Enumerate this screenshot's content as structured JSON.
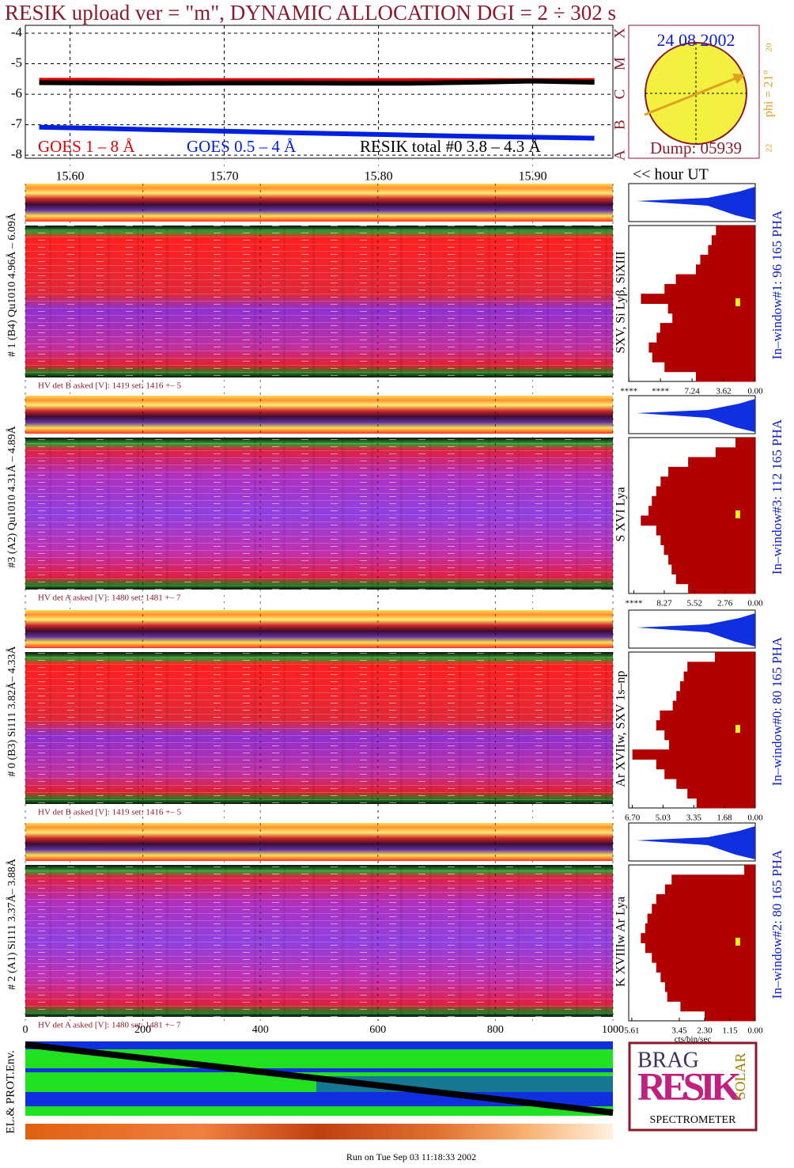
{
  "title": "RESIK upload ver = \"m\", DYNAMIC ALLOCATION  DGI =   2 ÷ 302 s",
  "chart_data": [
    {
      "type": "line",
      "xlabel": "<< hour UT",
      "x": [
        15.58,
        15.62,
        15.66,
        15.7,
        15.74,
        15.78,
        15.82,
        15.86,
        15.9,
        15.94
      ],
      "xlim": [
        15.571,
        15.952
      ],
      "xticks": [
        {
          "value": 15.6,
          "label": "15.60"
        },
        {
          "value": 15.7,
          "label": "15.70"
        },
        {
          "value": 15.8,
          "label": "15.80"
        },
        {
          "value": 15.9,
          "label": "15.90"
        }
      ],
      "ylim": [
        -8.1,
        -3.74
      ],
      "yticks": [
        -4,
        -5,
        -6,
        -7,
        -8
      ],
      "grid": true,
      "series": [
        {
          "name": "GOES 1 – 8 Å",
          "color": "#e00000",
          "values": [
            -5.54,
            -5.54,
            -5.55,
            -5.55,
            -5.55,
            -5.55,
            -5.55,
            -5.55,
            -5.55,
            -5.55
          ]
        },
        {
          "name": "GOES 0.5 – 4 Å",
          "color": "#0020e0",
          "values": [
            -7.08,
            -7.12,
            -7.17,
            -7.21,
            -7.26,
            -7.3,
            -7.34,
            -7.38,
            -7.41,
            -7.44
          ]
        },
        {
          "name": "RESIK total #0  3.8 – 4.3 Å",
          "color": "#000000",
          "values": [
            -5.62,
            -5.63,
            -5.64,
            -5.63,
            -5.63,
            -5.64,
            -5.64,
            -5.61,
            -5.57,
            -5.61
          ]
        }
      ]
    },
    {
      "type": "profile",
      "xlim": [
        14.5,
        0
      ],
      "xticks": [
        {
          "value": 14.48,
          "label": "****"
        },
        {
          "value": 10.86,
          "label": "****"
        },
        7.24,
        3.62,
        {
          "value": 0,
          "label": "0.00"
        }
      ],
      "values": [
        4.5,
        5.0,
        5.4,
        6.3,
        6.8,
        9.1,
        10.4,
        13.1,
        10.0,
        9.5,
        10.9,
        11.3,
        12.2,
        11.8,
        10.4,
        6.8
      ]
    },
    {
      "type": "profile",
      "xlim": [
        11.5,
        0
      ],
      "xticks": [
        {
          "value": 11.03,
          "label": "****"
        },
        8.27,
        5.52,
        2.76,
        {
          "value": 0,
          "label": "0.00"
        }
      ],
      "values": [
        1.8,
        3.6,
        6.1,
        7.9,
        8.6,
        9.0,
        9.4,
        9.7,
        10.4,
        9.0,
        8.6,
        8.3,
        7.9,
        7.6,
        7.2,
        6.1
      ]
    },
    {
      "type": "profile",
      "xlim": [
        6.9,
        0
      ],
      "xticks": [
        {
          "value": 6.7,
          "label": "6.70"
        },
        5.03,
        3.35,
        1.68,
        {
          "value": 0,
          "label": "0.00"
        }
      ],
      "values": [
        2.2,
        3.7,
        3.9,
        4.1,
        4.3,
        4.5,
        5.2,
        5.4,
        4.95,
        4.7,
        6.7,
        5.4,
        4.95,
        4.3,
        3.7,
        3.2
      ]
    },
    {
      "type": "profile",
      "xlim": [
        5.75,
        0
      ],
      "xlabel": "cts/bin/sec",
      "xticks": [
        5.61,
        3.45,
        {
          "value": 2.3,
          "label": "2.30"
        },
        1.15,
        {
          "value": 0,
          "label": "0.00"
        }
      ],
      "values": [
        0.5,
        3.8,
        4.1,
        4.5,
        4.7,
        4.9,
        5.0,
        5.2,
        5.0,
        4.7,
        4.5,
        4.3,
        4.1,
        4.0,
        3.4,
        2.3
      ]
    }
  ],
  "flare_classes": [
    "A",
    "B",
    "C",
    "M",
    "X"
  ],
  "sun": {
    "date": "24 08 2002",
    "dump": "Dump: 05939",
    "phi": "phi = 21°",
    "top_tick": "20",
    "bottom_tick": "22"
  },
  "panels": [
    {
      "label": "# 1 (B4) Qu1010 4.96Å – 6.09Å",
      "lines": "SXV, Si Lyβ, SiXIII",
      "window": "In–window#1:   96 165 PHA",
      "hv": "HV det B asked [V]:  1419 set:  1416 +–    5"
    },
    {
      "label": "#3 (A2) Qu1010  4.31Å – 4.89Å",
      "lines": "S XVI Lya",
      "window": "In–window#3:  112 165 PHA",
      "hv": "HV det A asked [V]:  1480 set:  1481 +–    7"
    },
    {
      "label": "# 0 (B3) Si111  3.82Å– 4.33Å",
      "lines": "Ar XVIIw,  SXV 1s–np",
      "window": "In–window#0:   80 165 PHA",
      "hv": "HV det B asked [V]:  1419 set:  1416 +–    5"
    },
    {
      "label": "# 2 (A1) Si111  3.37Å– 3.88Å",
      "lines": "K XVIIIw  Ar Lya",
      "window": "In–window#2:   80 165 PHA",
      "hv": "HV det A asked [V]:  1480 set:  1481 +–    7"
    }
  ],
  "bin_axis": {
    "xlim": [
      0,
      1000
    ],
    "xticks": [
      0,
      200,
      400,
      600,
      800,
      1000
    ]
  },
  "env_label": "EL.& PROT.Env.",
  "logo": {
    "top": "BRAG",
    "big": "RESIK",
    "side": "SOLAR",
    "bottom": "SPECTROMETER"
  },
  "footer": "Run on Tue Sep 03 11:18:33 2002"
}
